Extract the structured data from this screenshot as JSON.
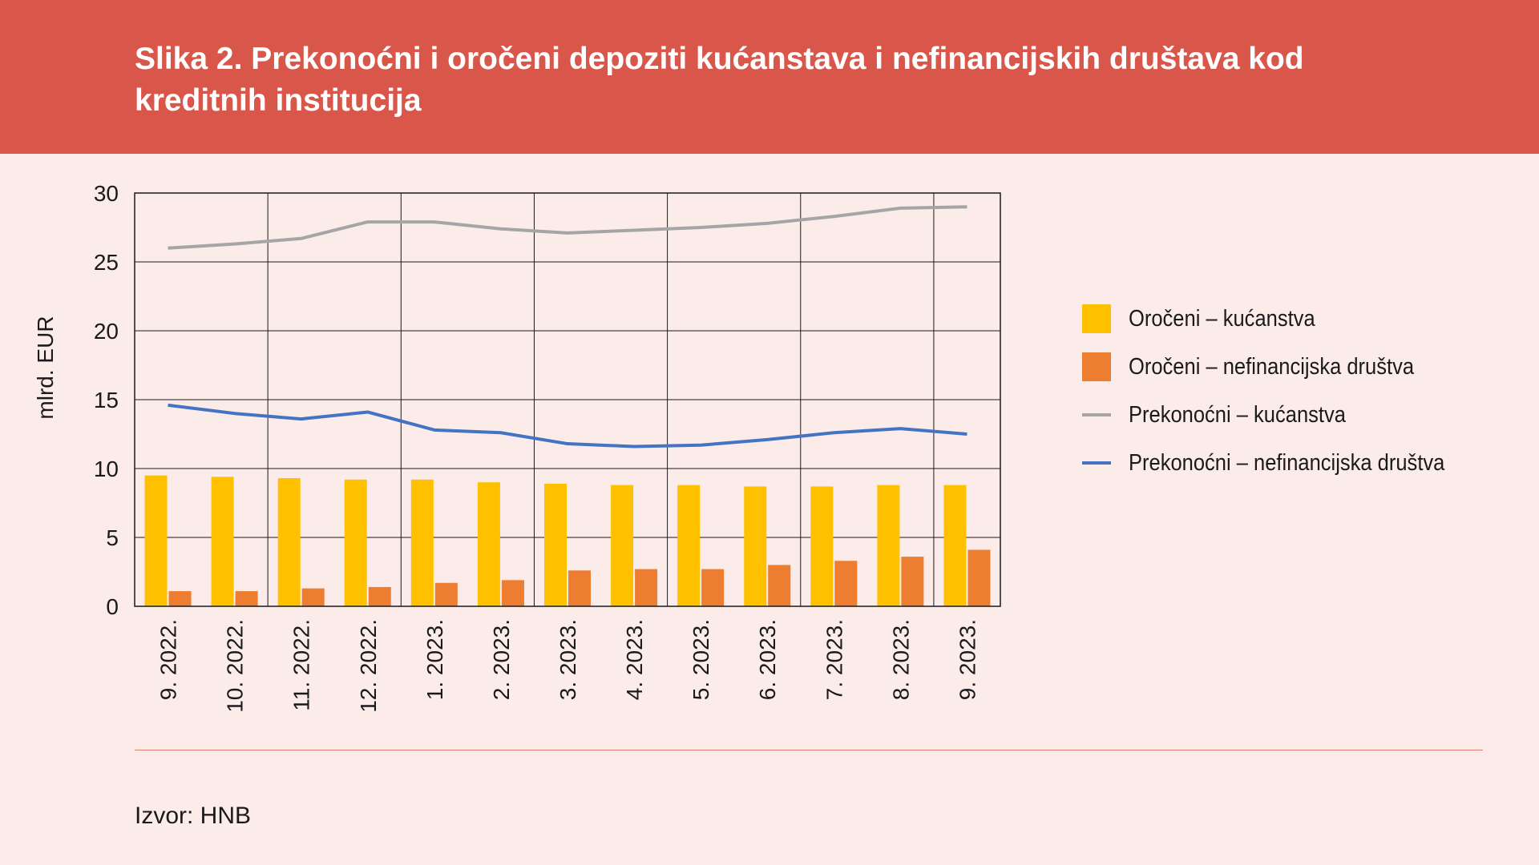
{
  "header": {
    "title": "Slika 2. Prekonoćni i oročeni depoziti kućanstava i nefinancijskih društava kod kreditnih institucija"
  },
  "source": "Izvor: HNB",
  "colors": {
    "header_bg": "#d9574a",
    "background": "#fbecea",
    "yellow": "#ffc000",
    "orange": "#ed7d31",
    "gray": "#a5a5a5",
    "blue": "#4472c4"
  },
  "chart_data": {
    "type": "bar",
    "ylabel": "mlrd. EUR",
    "ylim": [
      0,
      30
    ],
    "yticks": [
      0,
      5,
      10,
      15,
      20,
      25,
      30
    ],
    "grid": true,
    "legend_position": "right",
    "categories": [
      "9. 2022.",
      "10. 2022.",
      "11. 2022.",
      "12. 2022.",
      "1. 2023.",
      "2. 2023.",
      "3. 2023.",
      "4. 2023.",
      "5. 2023.",
      "6. 2023.",
      "7. 2023.",
      "8. 2023.",
      "9. 2023."
    ],
    "series": [
      {
        "name": "Oročeni – kućanstva",
        "type": "bar",
        "color": "#ffc000",
        "values": [
          9.5,
          9.4,
          9.3,
          9.2,
          9.2,
          9.0,
          8.9,
          8.8,
          8.8,
          8.7,
          8.7,
          8.8,
          8.8
        ]
      },
      {
        "name": "Oročeni – nefinancijska društva",
        "type": "bar",
        "color": "#ed7d31",
        "values": [
          1.1,
          1.1,
          1.3,
          1.4,
          1.7,
          1.9,
          2.6,
          2.7,
          2.7,
          3.0,
          3.3,
          3.6,
          4.1
        ]
      },
      {
        "name": "Prekonoćni – kućanstva",
        "type": "line",
        "color": "#a5a5a5",
        "values": [
          26.0,
          26.3,
          26.7,
          27.9,
          27.9,
          27.4,
          27.1,
          27.3,
          27.5,
          27.8,
          28.3,
          28.9,
          29.0
        ]
      },
      {
        "name": "Prekonoćni – nefinancijska društva",
        "type": "line",
        "color": "#4472c4",
        "values": [
          14.6,
          14.0,
          13.6,
          14.1,
          12.8,
          12.6,
          11.8,
          11.6,
          11.7,
          12.1,
          12.6,
          12.9,
          12.5
        ]
      }
    ]
  }
}
